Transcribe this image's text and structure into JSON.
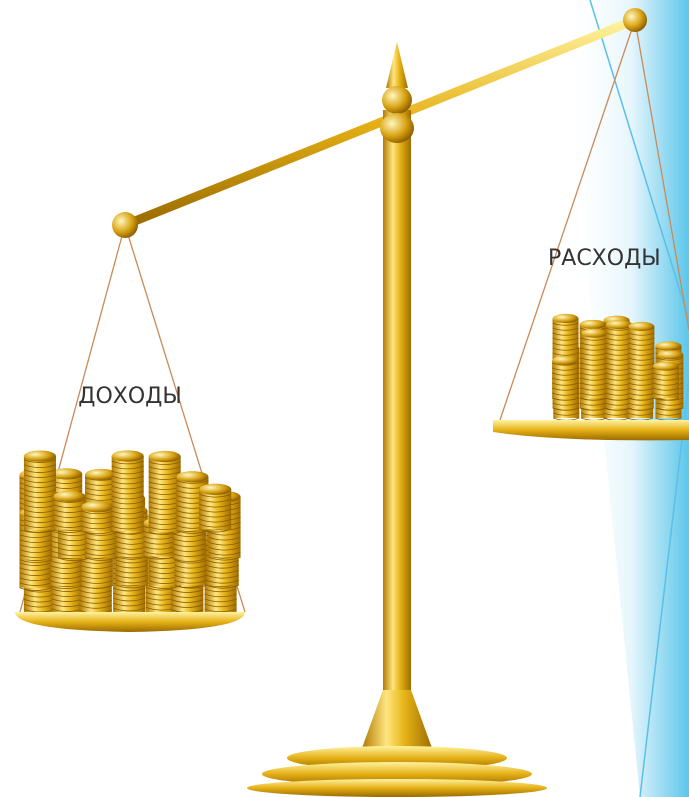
{
  "labels": {
    "income": "ДОХОДЫ",
    "expenses": "РАСХОДЫ"
  }
}
